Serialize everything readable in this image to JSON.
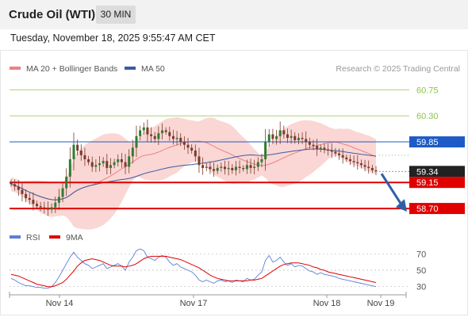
{
  "header": {
    "title": "Crude Oil (WTI)",
    "timeframe": "30 MIN",
    "datetime": "Tuesday, November 18, 2025 9:55:47 AM CET"
  },
  "copyright": "Research © 2025 Trading Central",
  "colors": {
    "candle": "#7a3b2e",
    "bollinger": "#f5b7b1",
    "ma20": "#f08080",
    "ma50": "#3b5ba5",
    "resistance": "#8bc34a",
    "pivot": "#1e5bc6",
    "support": "#e00000",
    "current": "#222222",
    "arrow": "#2e5fa8",
    "rsi": "#5b7fd6",
    "rsi_ma": "#e00000"
  },
  "chart_data": [
    {
      "type": "candlestick",
      "instrument": "Crude Oil (WTI)",
      "timeframe": "30 MIN",
      "legend": [
        {
          "name": "MA 20 + Bollinger Bands",
          "color": "#f08080"
        },
        {
          "name": "MA 50",
          "color": "#3b5ba5"
        }
      ],
      "legend_position": "top-left",
      "ylim": [
        58.4,
        61.0
      ],
      "x_labels": [
        "Nov 14",
        "Nov 17",
        "Nov 18",
        "Nov 19"
      ],
      "levels": [
        {
          "label": "60.75",
          "value": 60.75,
          "role": "resistance"
        },
        {
          "label": "60.30",
          "value": 60.3,
          "role": "resistance"
        },
        {
          "label": "59.85",
          "value": 59.85,
          "role": "pivot"
        },
        {
          "label": "59.34",
          "value": 59.34,
          "role": "current"
        },
        {
          "label": "59.15",
          "value": 59.15,
          "role": "support"
        },
        {
          "label": "58.70",
          "value": 58.7,
          "role": "support"
        }
      ],
      "arrow": {
        "direction": "down",
        "target": 58.7
      },
      "close": [
        59.12,
        59.08,
        59.02,
        58.95,
        58.88,
        58.85,
        58.78,
        58.74,
        58.72,
        58.7,
        58.68,
        58.72,
        58.8,
        58.9,
        59.05,
        59.25,
        59.55,
        59.8,
        59.7,
        59.62,
        59.55,
        59.5,
        59.42,
        59.45,
        59.48,
        59.52,
        59.4,
        59.45,
        59.5,
        59.55,
        59.5,
        59.42,
        59.6,
        59.75,
        59.95,
        60.05,
        60.1,
        59.98,
        59.95,
        59.9,
        60.0,
        60.05,
        60.02,
        59.95,
        59.9,
        59.92,
        59.85,
        59.8,
        59.75,
        59.7,
        59.6,
        59.45,
        59.4,
        59.42,
        59.38,
        59.35,
        59.4,
        59.42,
        59.38,
        59.4,
        59.36,
        59.42,
        59.4,
        59.38,
        59.45,
        59.4,
        59.42,
        59.5,
        59.55,
        59.85,
        59.98,
        59.9,
        59.95,
        60.05,
        59.98,
        59.92,
        59.95,
        59.88,
        59.92,
        59.9,
        59.85,
        59.8,
        59.78,
        59.72,
        59.75,
        59.72,
        59.7,
        59.68,
        59.65,
        59.62,
        59.58,
        59.55,
        59.52,
        59.5,
        59.48,
        59.45,
        59.42,
        59.4,
        59.36,
        59.34
      ],
      "series": [
        {
          "name": "RSI",
          "panel": "lower",
          "values": [
            40,
            38,
            35,
            33,
            31,
            31,
            30,
            29,
            29,
            28,
            28,
            30,
            35,
            42,
            50,
            58,
            66,
            72,
            66,
            62,
            58,
            56,
            52,
            54,
            56,
            58,
            52,
            54,
            56,
            58,
            55,
            50,
            60,
            66,
            74,
            76,
            74,
            66,
            64,
            62,
            66,
            68,
            66,
            60,
            56,
            58,
            54,
            52,
            50,
            48,
            44,
            38,
            36,
            38,
            36,
            34,
            37,
            38,
            36,
            37,
            35,
            38,
            37,
            36,
            40,
            38,
            39,
            44,
            48,
            62,
            68,
            60,
            62,
            66,
            60,
            56,
            58,
            54,
            56,
            55,
            52,
            49,
            48,
            45,
            47,
            45,
            44,
            43,
            42,
            40,
            39,
            38,
            37,
            36,
            35,
            34,
            33,
            32,
            31,
            30
          ]
        },
        {
          "name": "9MA",
          "panel": "lower",
          "values": [
            45,
            44,
            43,
            41,
            39,
            37,
            35,
            33,
            32,
            31,
            30,
            30,
            31,
            33,
            35,
            39,
            44,
            49,
            55,
            59,
            62,
            63,
            64,
            63,
            62,
            60,
            58,
            56,
            55,
            55,
            55,
            54,
            55,
            56,
            58,
            61,
            64,
            66,
            67,
            67,
            67,
            67,
            67,
            66,
            65,
            64,
            63,
            61,
            59,
            57,
            55,
            53,
            50,
            47,
            44,
            42,
            40,
            39,
            38,
            37,
            37,
            37,
            37,
            37,
            37,
            38,
            38,
            39,
            40,
            43,
            46,
            49,
            52,
            55,
            57,
            58,
            59,
            59,
            59,
            58,
            57,
            56,
            54,
            53,
            51,
            50,
            48,
            47,
            46,
            45,
            44,
            43,
            42,
            41,
            40,
            39,
            38,
            37,
            36,
            35
          ]
        }
      ]
    },
    {
      "type": "line",
      "title": "",
      "legend": [
        {
          "name": "RSI",
          "color": "#5b7fd6"
        },
        {
          "name": "9MA",
          "color": "#e00000"
        }
      ],
      "legend_position": "top-left",
      "ylim": [
        20,
        80
      ],
      "y_ticks": [
        70,
        50,
        30
      ],
      "x_labels": [
        "Nov 14",
        "Nov 17",
        "Nov 18",
        "Nov 19"
      ]
    }
  ]
}
